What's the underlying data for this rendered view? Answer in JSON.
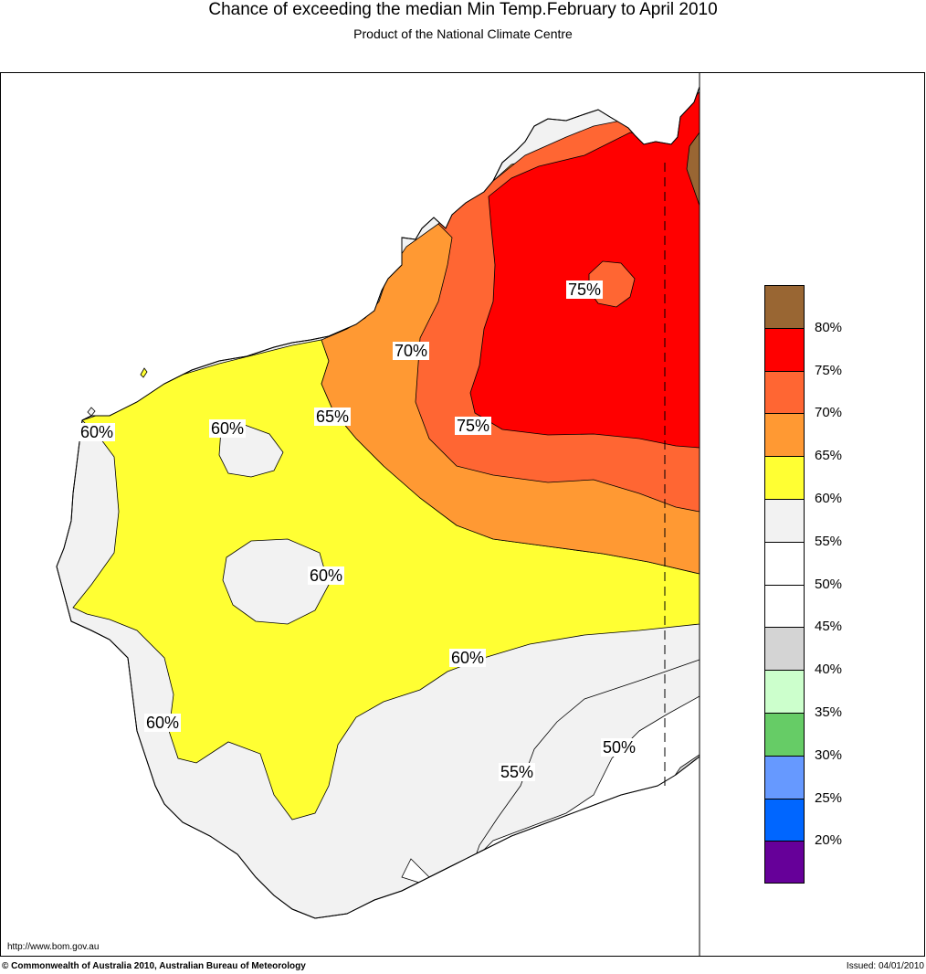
{
  "header": {
    "title": "Chance of exceeding the median Min Temp.February to April 2010",
    "subtitle": "Product of the National Climate Centre"
  },
  "legend": {
    "items": [
      {
        "color": "#996633",
        "label": ""
      },
      {
        "color": "#ff0000",
        "label": "80%"
      },
      {
        "color": "#ff6633",
        "label": "75%"
      },
      {
        "color": "#ff9933",
        "label": "70%"
      },
      {
        "color": "#ffff33",
        "label": "65%"
      },
      {
        "color": "#f2f2f2",
        "label": "60%"
      },
      {
        "color": "#ffffff",
        "label": "55%"
      },
      {
        "color": "#ffffff",
        "label": "50%"
      },
      {
        "color": "#d4d4d4",
        "label": "45%"
      },
      {
        "color": "#ccffcc",
        "label": "40%"
      },
      {
        "color": "#66cc66",
        "label": "35%"
      },
      {
        "color": "#6699ff",
        "label": "30%"
      },
      {
        "color": "#0066ff",
        "label": "25%"
      },
      {
        "color": "#660099",
        "label": "20%"
      }
    ]
  },
  "contour_labels": {
    "l75_top": "75%",
    "l70": "70%",
    "l65": "65%",
    "l75_mid": "75%",
    "l60_west": "60%",
    "l60_north": "60%",
    "l60_center": "60%",
    "l60_south": "60%",
    "l60_southwest": "60%",
    "l55": "55%",
    "l50": "50%"
  },
  "footer": {
    "url": "http://www.bom.gov.au",
    "copyright": "© Commonwealth of Australia 2010, Australian Bureau of Meteorology",
    "issued": "Issued: 04/01/2010"
  }
}
